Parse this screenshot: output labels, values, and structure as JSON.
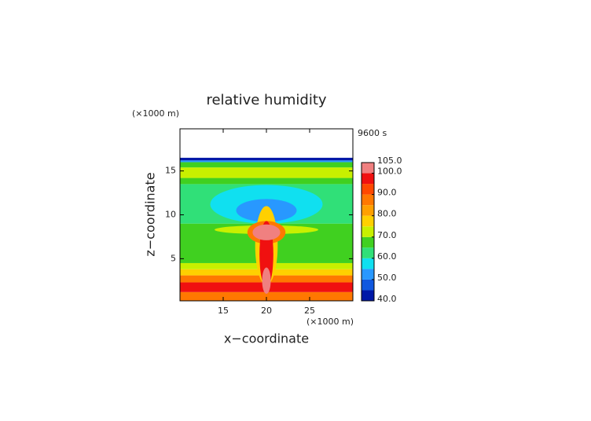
{
  "chart_data": {
    "type": "contour",
    "title": "relative humidity",
    "xlabel": "x−coordinate",
    "ylabel": "z−coordinate",
    "x_unit_label": "(×1000 m)",
    "y_unit_label": "(×1000 m)",
    "time_label": "9600 s",
    "xlim": [
      10,
      30
    ],
    "ylim": [
      0.2,
      19.8
    ],
    "xticks": [
      15,
      20,
      25
    ],
    "yticks": [
      5,
      10,
      15
    ],
    "colorbar": {
      "levels": [
        40,
        45,
        50,
        55,
        60,
        65,
        70,
        75,
        80,
        85,
        90,
        95,
        100,
        105
      ],
      "colors": [
        "#0018a8",
        "#1058e0",
        "#2898ff",
        "#10e0f0",
        "#30e078",
        "#40d020",
        "#c8f000",
        "#ffd000",
        "#ffa000",
        "#ff7800",
        "#ff4800",
        "#f01010",
        "#f08080"
      ],
      "ticks": [
        {
          "value": 105,
          "label": "105.0"
        },
        {
          "value": 100,
          "label": "100.0"
        },
        {
          "value": 90,
          "label": "90.0"
        },
        {
          "value": 80,
          "label": "80.0"
        },
        {
          "value": 70,
          "label": "70.0"
        },
        {
          "value": 60,
          "label": "60.0"
        },
        {
          "value": 50,
          "label": "50.0"
        },
        {
          "value": 40,
          "label": "40.0"
        }
      ]
    },
    "bands": [
      {
        "z": [
          0.2,
          1.2
        ],
        "value": 87
      },
      {
        "z": [
          1.2,
          2.3
        ],
        "value": 96
      },
      {
        "z": [
          2.3,
          3.1
        ],
        "value": 86
      },
      {
        "z": [
          3.1,
          3.8
        ],
        "value": 77
      },
      {
        "z": [
          3.8,
          4.5
        ],
        "value": 71
      },
      {
        "z": [
          4.5,
          9.0
        ],
        "value": 66
      },
      {
        "z": [
          9.0,
          13.5
        ],
        "value": 62
      },
      {
        "z": [
          13.5,
          14.2
        ],
        "value": 67
      },
      {
        "z": [
          14.2,
          15.4
        ],
        "value": 73
      },
      {
        "z": [
          15.4,
          16.0
        ],
        "value": 67
      },
      {
        "z": [
          16.0,
          16.2
        ],
        "value": 52
      },
      {
        "z": [
          16.2,
          16.5
        ],
        "value": 42
      }
    ],
    "blobs": [
      {
        "x": 20,
        "z": 11.2,
        "rx": 6.5,
        "rz": 2.2,
        "value": 57
      },
      {
        "x": 20,
        "z": 10.5,
        "rx": 3.5,
        "rz": 1.3,
        "value": 52
      },
      {
        "x": 20,
        "z": 8.3,
        "rx": 6,
        "rz": 0.5,
        "value": 73
      },
      {
        "x": 20,
        "z": 6.5,
        "rx": 1.3,
        "rz": 4.5,
        "value": 76
      },
      {
        "x": 20,
        "z": 8.0,
        "rx": 2.2,
        "rz": 1.3,
        "value": 86
      },
      {
        "x": 20,
        "z": 5.5,
        "rx": 0.8,
        "rz": 3.8,
        "value": 96
      },
      {
        "x": 20,
        "z": 8.0,
        "rx": 1.6,
        "rz": 0.9,
        "value": 101
      },
      {
        "x": 20,
        "z": 2.5,
        "rx": 0.5,
        "rz": 1.5,
        "value": 101
      }
    ]
  }
}
